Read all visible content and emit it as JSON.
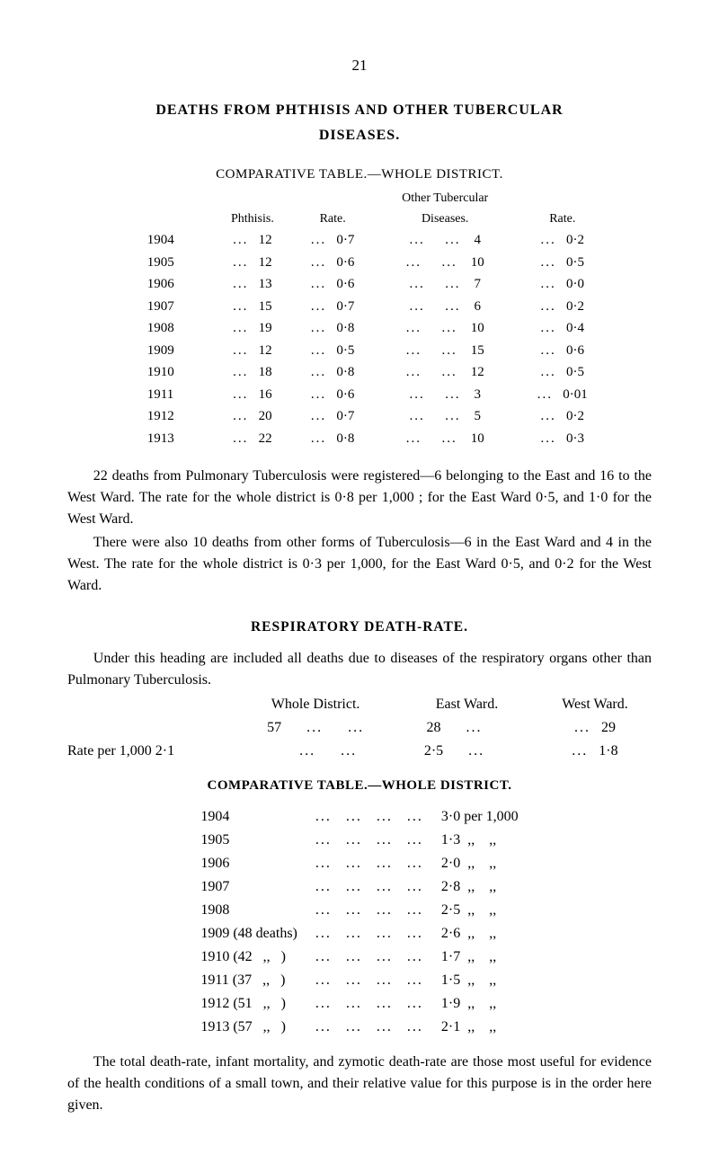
{
  "page_number": "21",
  "title1": "DEATHS FROM PHTHISIS AND OTHER TUBERCULAR",
  "title2": "DISEASES.",
  "comp1": "COMPARATIVE TABLE.—WHOLE DISTRICT.",
  "table1": {
    "header_othertub": "Other Tubercular",
    "headers": [
      "",
      "Phthisis.",
      "Rate.",
      "Diseases.",
      "Rate."
    ],
    "rows": [
      {
        "y": "1904",
        "ph": "12",
        "r1": "0·7",
        "d": "4",
        "r2": "0·2"
      },
      {
        "y": "1905",
        "ph": "12",
        "r1": "0·6",
        "d": "10",
        "r2": "0·5"
      },
      {
        "y": "1906",
        "ph": "13",
        "r1": "0·6",
        "d": "7",
        "r2": "0·0"
      },
      {
        "y": "1907",
        "ph": "15",
        "r1": "0·7",
        "d": "6",
        "r2": "0·2"
      },
      {
        "y": "1908",
        "ph": "19",
        "r1": "0·8",
        "d": "10",
        "r2": "0·4"
      },
      {
        "y": "1909",
        "ph": "12",
        "r1": "0·5",
        "d": "15",
        "r2": "0·6"
      },
      {
        "y": "1910",
        "ph": "18",
        "r1": "0·8",
        "d": "12",
        "r2": "0·5"
      },
      {
        "y": "1911",
        "ph": "16",
        "r1": "0·6",
        "d": "3",
        "r2": "0·01"
      },
      {
        "y": "1912",
        "ph": "20",
        "r1": "0·7",
        "d": "5",
        "r2": "0·2"
      },
      {
        "y": "1913",
        "ph": "22",
        "r1": "0·8",
        "d": "10",
        "r2": "0·3"
      }
    ]
  },
  "para1": "22 deaths from Pulmonary Tuberculosis were registered—6 belonging to the East and 16 to the West Ward. The rate for the whole district is 0·8 per 1,000 ; for the East Ward 0·5, and 1·0 for the West Ward.",
  "para2": "There were also 10 deaths from other forms of Tuberculosis—6 in the East Ward and 4 in the West. The rate for the whole district is 0·3 per 1,000, for the East Ward 0·5, and 0·2 for the West Ward.",
  "resp_title": "RESPIRATORY DEATH-RATE.",
  "para3": "Under this heading are included all deaths due to diseases of the respiratory organs other than Pulmonary Tuberculosis.",
  "table2": {
    "hdr": [
      "",
      "Whole District.",
      "East Ward.",
      "West Ward."
    ],
    "rows": [
      {
        "l": "",
        "wd": "57",
        "ew": "28",
        "ww": "29"
      },
      {
        "l": "Rate per 1,000 2·1",
        "wd": "",
        "ew": "2·5",
        "ww": "1·8"
      }
    ]
  },
  "comp2": "COMPARATIVE TABLE.—WHOLE DISTRICT.",
  "table3": {
    "rows": [
      {
        "y": "1904",
        "v": "3·0 per 1,000"
      },
      {
        "y": "1905",
        "v": "1·3  ,,    ,,"
      },
      {
        "y": "1906",
        "v": "2·0  ,,    ,,"
      },
      {
        "y": "1907",
        "v": "2·8  ,,    ,,"
      },
      {
        "y": "1908",
        "v": "2·5  ,,    ,,"
      },
      {
        "y": "1909 (48 deaths)",
        "v": "2·6  ,,    ,,"
      },
      {
        "y": "1910 (42   ,,   )",
        "v": "1·7  ,,    ,,"
      },
      {
        "y": "1911 (37   ,,   )",
        "v": "1·5  ,,    ,,"
      },
      {
        "y": "1912 (51   ,,   )",
        "v": "1·9  ,,    ,,"
      },
      {
        "y": "1913 (57   ,,   )",
        "v": "2·1  ,,    ,,"
      }
    ]
  },
  "para4": "The total death-rate, infant mortality, and zymotic death-rate are those most useful for evidence of the health conditions of a small town, and their relative value for this purpose is in the order here given."
}
